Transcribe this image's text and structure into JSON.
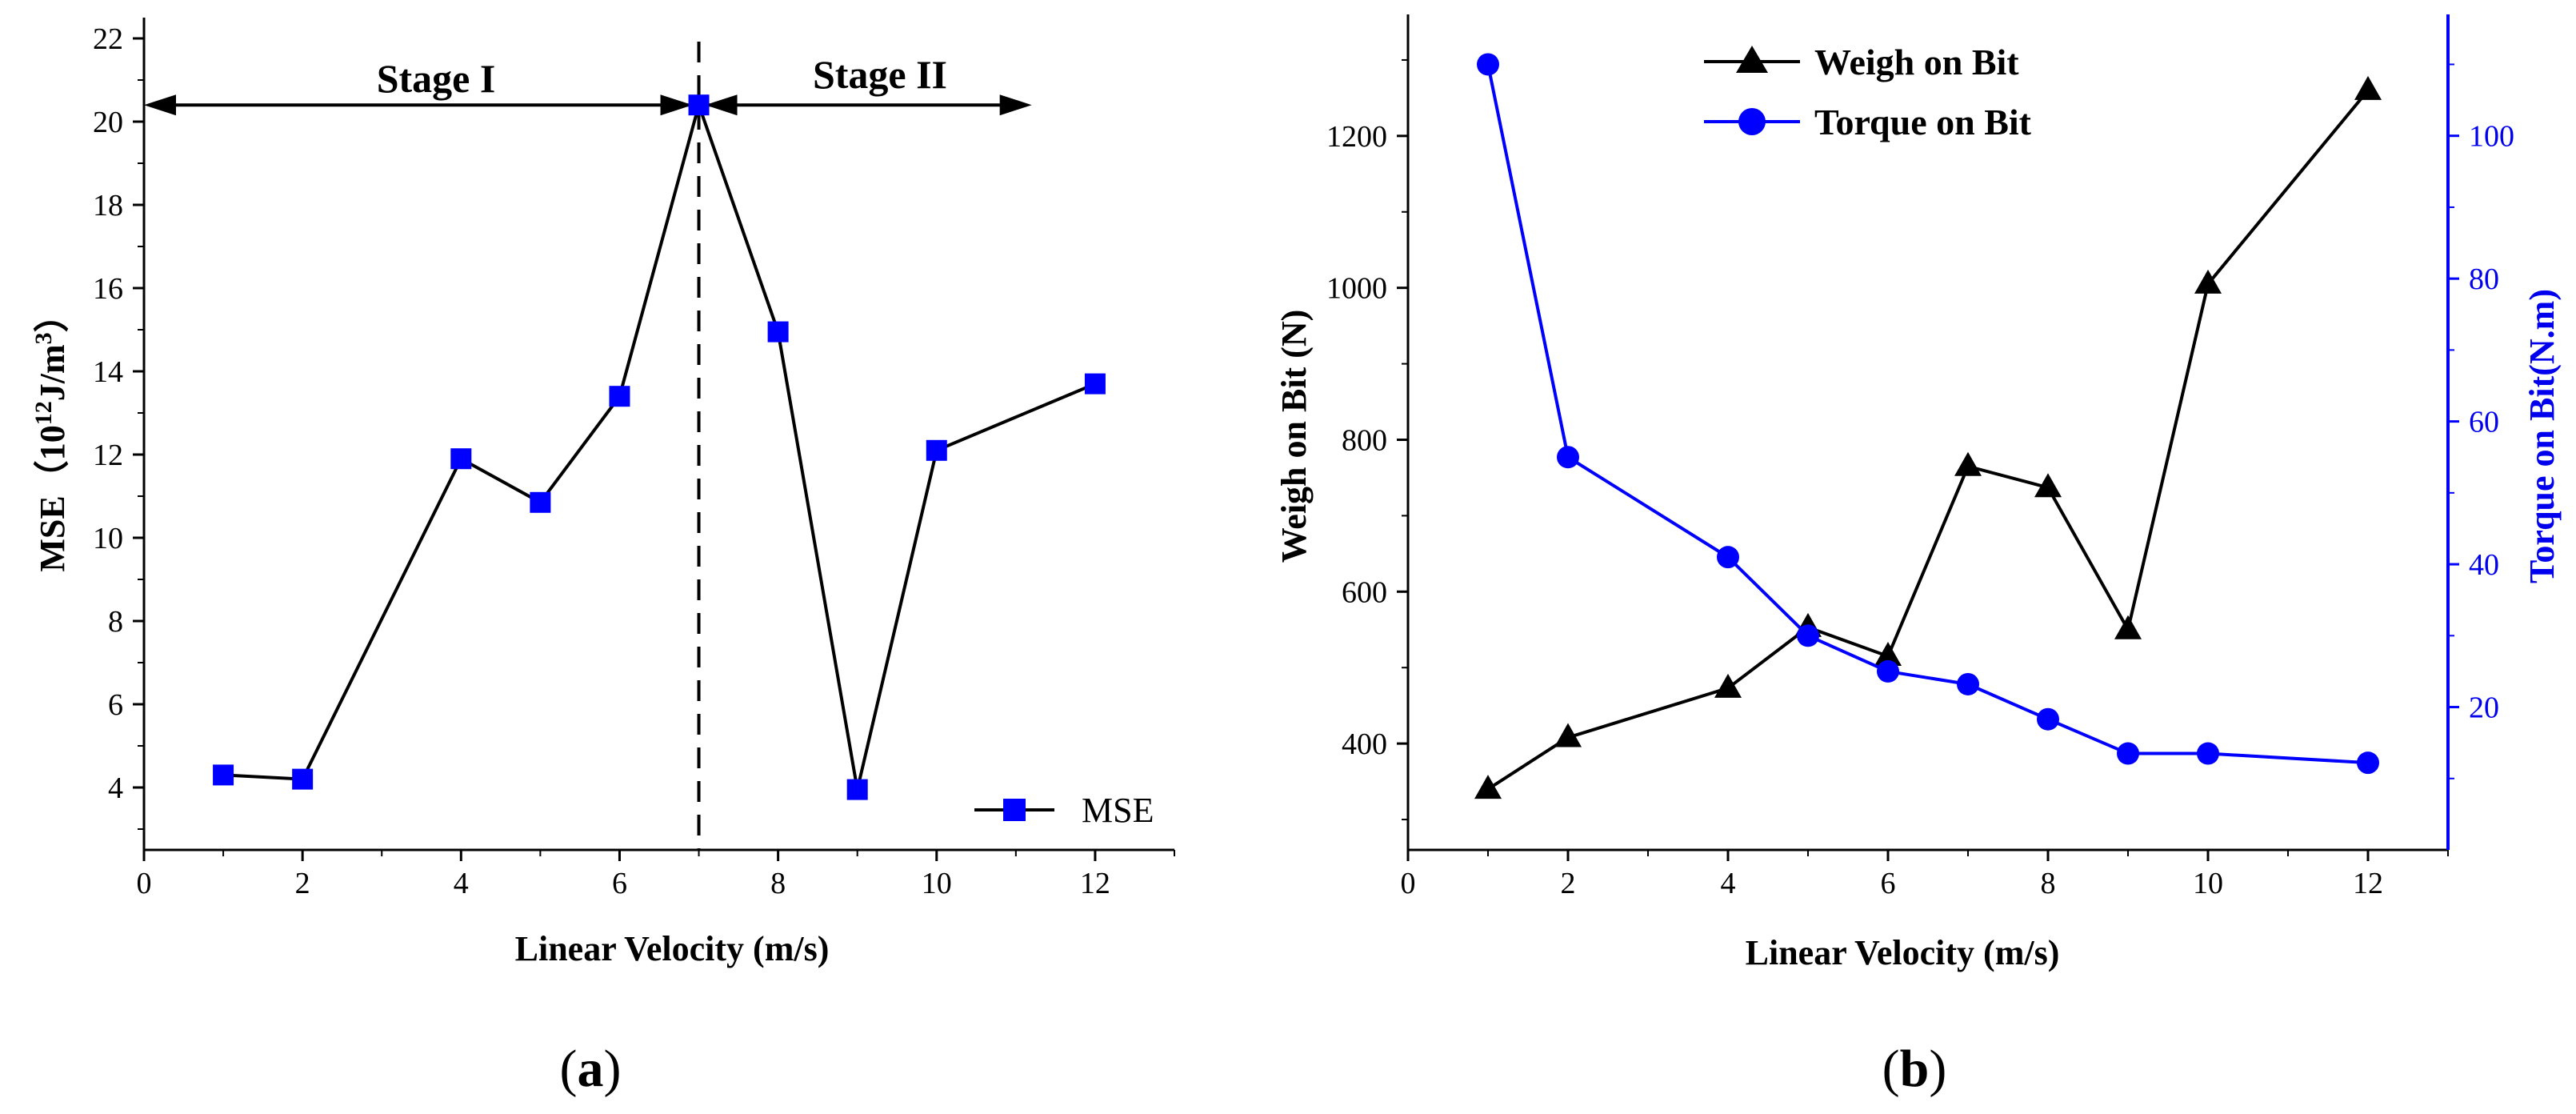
{
  "chart_data": [
    {
      "panel": "a",
      "type": "line",
      "xlabel": "Linear Velocity (m/s)",
      "ylabel": {
        "main": "MSE（10",
        "sup": "12",
        "mid": "J/m",
        "sup2": "3",
        "end": "）"
      },
      "xlim": [
        0,
        13
      ],
      "ylim": [
        2.5,
        22.5
      ],
      "xticks": [
        0,
        2,
        4,
        6,
        8,
        10,
        12
      ],
      "yticks": [
        4,
        6,
        8,
        10,
        12,
        14,
        16,
        18,
        20,
        22
      ],
      "series": [
        {
          "name": "MSE",
          "color": "#0000ff",
          "marker": "square",
          "x": [
            1,
            2,
            4,
            5,
            6,
            7,
            8,
            9,
            10,
            12
          ],
          "y": [
            4.3,
            4.2,
            11.9,
            10.85,
            13.4,
            20.4,
            14.95,
            3.95,
            12.1,
            13.7
          ]
        }
      ],
      "annotations": {
        "divider_x": 7,
        "stage1": {
          "label": "Stage I",
          "x_from": 0,
          "x_to": 7,
          "y": 20.4
        },
        "stage2": {
          "label": "Stage II",
          "x_from": 7,
          "x_to": 11.2,
          "y": 20.4
        }
      },
      "legend": "bottom-right",
      "panel_label": {
        "open": "(",
        "letter": "a",
        "close": ")"
      }
    },
    {
      "panel": "b",
      "type": "line",
      "xlabel": "Linear Velocity (m/s)",
      "ylabel_left": "Weigh on Bit (N)",
      "ylabel_right": "Torque on Bit(N.m)",
      "xlim": [
        0,
        13
      ],
      "ylim_left": [
        260,
        1360
      ],
      "ylim_right": [
        0,
        117
      ],
      "xticks": [
        0,
        2,
        4,
        6,
        8,
        10,
        12
      ],
      "yticks_left": [
        400,
        600,
        800,
        1000,
        1200
      ],
      "yticks_right": [
        20,
        40,
        60,
        80,
        100
      ],
      "series": [
        {
          "name": "Weigh on Bit",
          "color": "#000000",
          "marker": "triangle",
          "axis": "left",
          "x": [
            1,
            2,
            4,
            5,
            6,
            7,
            8,
            9,
            10,
            12
          ],
          "y": [
            340,
            408,
            473,
            553,
            515,
            765,
            737,
            550,
            1005,
            1260
          ]
        },
        {
          "name": "Torque on Bit",
          "color": "#0000ff",
          "marker": "circle",
          "axis": "right",
          "x": [
            1,
            2,
            4,
            5,
            6,
            7,
            8,
            9,
            10,
            12
          ],
          "y": [
            110,
            55,
            41,
            30,
            25,
            23.2,
            18.3,
            13.5,
            13.5,
            12.2
          ]
        }
      ],
      "legend": "top-center",
      "panel_label": {
        "open": "(",
        "letter": "b",
        "close": ")"
      }
    }
  ]
}
